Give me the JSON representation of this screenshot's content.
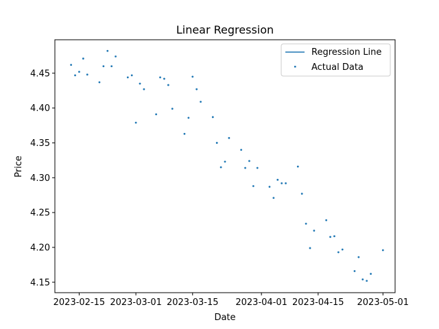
{
  "chart_data": {
    "type": "scatter",
    "title": "Linear Regression",
    "xlabel": "Date",
    "ylabel": "Price",
    "xlim": [
      "2023-02-09",
      "2023-05-04"
    ],
    "ylim": [
      4.135,
      4.498
    ],
    "xticks": [
      "2023-02-15",
      "2023-03-01",
      "2023-03-15",
      "2023-04-01",
      "2023-04-15",
      "2023-05-01"
    ],
    "yticks": [
      4.15,
      4.2,
      4.25,
      4.3,
      4.35,
      4.4,
      4.45
    ],
    "ytick_labels": [
      "4.15",
      "4.20",
      "4.25",
      "4.30",
      "4.35",
      "4.40",
      "4.45"
    ],
    "grid": false,
    "legend_position": "top-right",
    "colors": {
      "series": "#1f77b4"
    },
    "series": [
      {
        "name": "Regression Line",
        "kind": "line",
        "values": []
      },
      {
        "name": "Actual Data",
        "kind": "scatter",
        "x": [
          "2023-02-13",
          "2023-02-14",
          "2023-02-15",
          "2023-02-16",
          "2023-02-17",
          "2023-02-20",
          "2023-02-21",
          "2023-02-22",
          "2023-02-23",
          "2023-02-24",
          "2023-02-27",
          "2023-02-28",
          "2023-03-01",
          "2023-03-02",
          "2023-03-03",
          "2023-03-06",
          "2023-03-07",
          "2023-03-08",
          "2023-03-09",
          "2023-03-10",
          "2023-03-13",
          "2023-03-14",
          "2023-03-15",
          "2023-03-16",
          "2023-03-17",
          "2023-03-20",
          "2023-03-21",
          "2023-03-22",
          "2023-03-23",
          "2023-03-24",
          "2023-03-27",
          "2023-03-28",
          "2023-03-29",
          "2023-03-30",
          "2023-03-31",
          "2023-04-03",
          "2023-04-04",
          "2023-04-05",
          "2023-04-06",
          "2023-04-07",
          "2023-04-10",
          "2023-04-11",
          "2023-04-12",
          "2023-04-13",
          "2023-04-14",
          "2023-04-17",
          "2023-04-18",
          "2023-04-19",
          "2023-04-20",
          "2023-04-21",
          "2023-04-24",
          "2023-04-25",
          "2023-04-26",
          "2023-04-27",
          "2023-04-28",
          "2023-05-01"
        ],
        "y": [
          4.462,
          4.447,
          4.452,
          4.471,
          4.448,
          4.437,
          4.46,
          4.482,
          4.46,
          4.474,
          4.444,
          4.447,
          4.379,
          4.435,
          4.427,
          4.391,
          4.444,
          4.442,
          4.433,
          4.399,
          4.363,
          4.386,
          4.445,
          4.427,
          4.409,
          4.387,
          4.35,
          4.315,
          4.323,
          4.357,
          4.34,
          4.314,
          4.324,
          4.288,
          4.314,
          4.287,
          4.271,
          4.297,
          4.292,
          4.292,
          4.316,
          4.277,
          4.234,
          4.199,
          4.224,
          4.239,
          4.215,
          4.216,
          4.193,
          4.197,
          4.166,
          4.186,
          4.154,
          4.152,
          4.162,
          4.196
        ]
      }
    ]
  }
}
